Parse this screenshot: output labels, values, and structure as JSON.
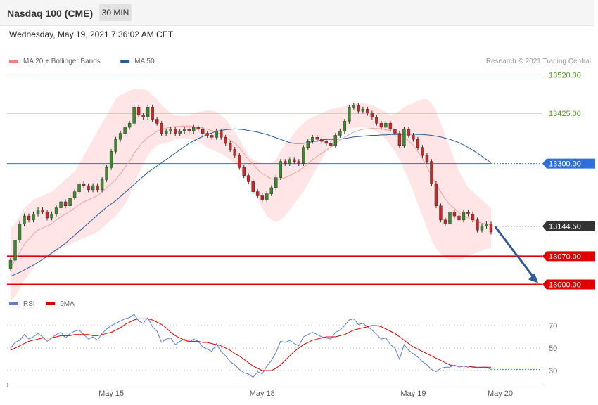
{
  "header": {
    "title": "Nasdaq 100 (CME)",
    "timeframe": "30 MIN"
  },
  "datetime": "Wednesday, May 19, 2021 7:36:02 AM CET",
  "copyright": "Research © 2021 Trading Central",
  "chart_data": [
    {
      "type": "candlestick",
      "legend": [
        {
          "name": "MA 20 + Bollinger Bands",
          "color": "#f08080"
        },
        {
          "name": "MA 50",
          "color": "#2a5a9a"
        }
      ],
      "ylim": [
        12960,
        13550
      ],
      "levels": [
        {
          "value": 13520,
          "label": "13520.00",
          "color": "#8fc07a",
          "text_color": "#5a9a28",
          "style": "line"
        },
        {
          "value": 13425,
          "label": "13425.00",
          "color": "#8fc07a",
          "text_color": "#5a9a28",
          "style": "line"
        },
        {
          "value": 13300,
          "label": "13300.00",
          "color": "#2f6fd6",
          "text_color": "#ffffff",
          "style": "badge"
        },
        {
          "value": 13144.5,
          "label": "13144.50",
          "color": "#333333",
          "text_color": "#ffffff",
          "style": "price"
        },
        {
          "value": 13070,
          "label": "13070.00",
          "color": "#e00000",
          "text_color": "#ffffff",
          "style": "badge"
        },
        {
          "value": 13000,
          "label": "13000.00",
          "color": "#e00000",
          "text_color": "#ffffff",
          "style": "badge"
        }
      ],
      "arrow": {
        "from": 13143,
        "to": 13000,
        "color": "#2e5a96"
      },
      "x_labels": [
        "May 15",
        "May 18",
        "May 19",
        "May 20"
      ],
      "x_label_index": [
        22,
        55,
        88,
        107
      ],
      "close": [
        13060,
        13110,
        13150,
        13170,
        13160,
        13175,
        13185,
        13180,
        13165,
        13175,
        13190,
        13205,
        13195,
        13215,
        13230,
        13250,
        13245,
        13235,
        13245,
        13235,
        13260,
        13290,
        13330,
        13360,
        13375,
        13390,
        13400,
        13440,
        13420,
        13415,
        13440,
        13410,
        13400,
        13375,
        13380,
        13385,
        13375,
        13380,
        13385,
        13380,
        13390,
        13385,
        13375,
        13370,
        13365,
        13380,
        13365,
        13350,
        13335,
        13320,
        13290,
        13270,
        13255,
        13230,
        13220,
        13210,
        13225,
        13240,
        13265,
        13305,
        13300,
        13310,
        13305,
        13300,
        13340,
        13355,
        13365,
        13360,
        13355,
        13350,
        13345,
        13370,
        13380,
        13405,
        13440,
        13445,
        13430,
        13435,
        13425,
        13415,
        13400,
        13390,
        13400,
        13385,
        13375,
        13345,
        13385,
        13370,
        13360,
        13340,
        13320,
        13305,
        13250,
        13195,
        13160,
        13150,
        13180,
        13170,
        13160,
        13180,
        13175,
        13160,
        13135,
        13145,
        13150,
        13130
      ],
      "ma20": [
        13040,
        13060,
        13080,
        13100,
        13112,
        13125,
        13135,
        13140,
        13145,
        13150,
        13160,
        13168,
        13175,
        13182,
        13190,
        13198,
        13205,
        13210,
        13215,
        13220,
        13230,
        13240,
        13250,
        13260,
        13275,
        13290,
        13305,
        13325,
        13340,
        13355,
        13365,
        13372,
        13380,
        13385,
        13388,
        13390,
        13392,
        13392,
        13393,
        13393,
        13392,
        13390,
        13388,
        13385,
        13382,
        13378,
        13372,
        13365,
        13358,
        13350,
        13340,
        13325,
        13310,
        13298,
        13285,
        13275,
        13268,
        13262,
        13260,
        13262,
        13265,
        13270,
        13276,
        13282,
        13290,
        13300,
        13310,
        13318,
        13326,
        13333,
        13340,
        13350,
        13358,
        13365,
        13372,
        13378,
        13382,
        13385,
        13386,
        13387,
        13387,
        13386,
        13384,
        13382,
        13378,
        13372,
        13365,
        13356,
        13345,
        13330,
        13312,
        13292,
        13270,
        13248,
        13230,
        13212,
        13198,
        13188,
        13178,
        13170,
        13165,
        13160,
        13155,
        13152,
        13150,
        13148
      ],
      "bb_upper": [
        13140,
        13150,
        13170,
        13190,
        13200,
        13210,
        13215,
        13220,
        13225,
        13230,
        13240,
        13250,
        13260,
        13270,
        13280,
        13300,
        13320,
        13340,
        13360,
        13380,
        13400,
        13420,
        13440,
        13460,
        13470,
        13475,
        13480,
        13485,
        13485,
        13485,
        13480,
        13470,
        13460,
        13445,
        13435,
        13425,
        13420,
        13418,
        13418,
        13420,
        13425,
        13428,
        13430,
        13432,
        13432,
        13428,
        13420,
        13410,
        13395,
        13380,
        13360,
        13340,
        13320,
        13310,
        13305,
        13300,
        13300,
        13300,
        13310,
        13330,
        13350,
        13360,
        13375,
        13390,
        13400,
        13410,
        13415,
        13420,
        13425,
        13430,
        13435,
        13438,
        13440,
        13442,
        13445,
        13448,
        13450,
        13450,
        13448,
        13445,
        13440,
        13435,
        13428,
        13420,
        13425,
        13430,
        13440,
        13445,
        13450,
        13455,
        13460,
        13460,
        13450,
        13430,
        13400,
        13370,
        13340,
        13310,
        13280,
        13260,
        13240,
        13230,
        13220,
        13210,
        13200,
        13190
      ],
      "bb_lower": [
        12960,
        12970,
        12990,
        13010,
        13025,
        13040,
        13055,
        13060,
        13065,
        13070,
        13080,
        13090,
        13095,
        13100,
        13105,
        13110,
        13115,
        13120,
        13125,
        13130,
        13140,
        13150,
        13160,
        13170,
        13185,
        13200,
        13220,
        13250,
        13275,
        13300,
        13320,
        13335,
        13345,
        13350,
        13352,
        13355,
        13360,
        13362,
        13362,
        13362,
        13360,
        13355,
        13348,
        13340,
        13335,
        13330,
        13325,
        13318,
        13310,
        13300,
        13290,
        13270,
        13250,
        13230,
        13210,
        13190,
        13170,
        13160,
        13155,
        13160,
        13170,
        13185,
        13200,
        13215,
        13230,
        13250,
        13270,
        13290,
        13310,
        13330,
        13345,
        13360,
        13370,
        13380,
        13385,
        13388,
        13390,
        13390,
        13388,
        13385,
        13380,
        13372,
        13360,
        13345,
        13330,
        13310,
        13285,
        13260,
        13230,
        13200,
        13170,
        13140,
        13110,
        13090,
        13075,
        13065,
        13060,
        13060,
        13060,
        13065,
        13070,
        13075,
        13080,
        13085,
        13088,
        13090
      ],
      "ma50": [
        13020,
        13025,
        13030,
        13036,
        13042,
        13048,
        13055,
        13062,
        13070,
        13078,
        13086,
        13094,
        13102,
        13112,
        13122,
        13132,
        13142,
        13152,
        13162,
        13172,
        13182,
        13192,
        13200,
        13208,
        13218,
        13228,
        13238,
        13248,
        13258,
        13268,
        13278,
        13286,
        13294,
        13302,
        13310,
        13318,
        13326,
        13334,
        13342,
        13350,
        13356,
        13362,
        13367,
        13372,
        13376,
        13380,
        13382,
        13384,
        13385,
        13386,
        13385,
        13384,
        13382,
        13380,
        13378,
        13375,
        13372,
        13368,
        13364,
        13360,
        13356,
        13352,
        13350,
        13350,
        13350,
        13352,
        13354,
        13356,
        13358,
        13360,
        13360,
        13360,
        13361,
        13362,
        13364,
        13366,
        13367,
        13368,
        13369,
        13370,
        13370,
        13371,
        13371,
        13372,
        13372,
        13372,
        13373,
        13373,
        13373,
        13372,
        13372,
        13371,
        13370,
        13368,
        13366,
        13363,
        13360,
        13356,
        13352,
        13346,
        13340,
        13333,
        13326,
        13318,
        13310,
        13302
      ]
    },
    {
      "type": "line",
      "legend": [
        {
          "name": "RSI",
          "color": "#5b7fd6"
        },
        {
          "name": "9MA",
          "color": "#e00000"
        }
      ],
      "ylim": [
        20,
        80
      ],
      "levels": [
        {
          "value": 70,
          "label": "70"
        },
        {
          "value": 50,
          "label": "50"
        },
        {
          "value": 30,
          "label": "30"
        }
      ],
      "rsi": [
        50,
        55,
        57,
        62,
        58,
        60,
        63,
        60,
        56,
        59,
        62,
        64,
        59,
        63,
        65,
        66,
        62,
        58,
        60,
        57,
        63,
        67,
        70,
        72,
        74,
        76,
        77,
        80,
        74,
        72,
        77,
        69,
        65,
        55,
        58,
        59,
        53,
        56,
        58,
        55,
        58,
        56,
        51,
        49,
        47,
        54,
        47,
        43,
        38,
        35,
        31,
        28,
        27,
        24,
        29,
        27,
        34,
        39,
        46,
        56,
        55,
        57,
        54,
        52,
        60,
        62,
        64,
        62,
        60,
        59,
        58,
        64,
        66,
        70,
        75,
        76,
        71,
        72,
        69,
        66,
        62,
        58,
        59,
        53,
        50,
        40,
        53,
        48,
        45,
        42,
        38,
        35,
        31,
        29,
        32,
        33,
        33,
        35,
        33,
        34,
        33,
        34,
        32,
        33,
        33,
        31
      ],
      "ma9": [
        48,
        50,
        52,
        54,
        56,
        57,
        58,
        59,
        59,
        59,
        60,
        61,
        61,
        61,
        62,
        62,
        62,
        62,
        61,
        61,
        62,
        63,
        64,
        66,
        68,
        71,
        73,
        75,
        76,
        76,
        76,
        75,
        73,
        71,
        68,
        64,
        61,
        59,
        57,
        56,
        56,
        56,
        55,
        55,
        54,
        53,
        52,
        50,
        48,
        45,
        43,
        40,
        37,
        34,
        32,
        30,
        30,
        30,
        32,
        35,
        39,
        43,
        47,
        50,
        53,
        55,
        57,
        58,
        59,
        60,
        60,
        60,
        61,
        62,
        64,
        66,
        67,
        68,
        69,
        70,
        70,
        69,
        67,
        65,
        63,
        60,
        57,
        54,
        51,
        49,
        47,
        45,
        43,
        41,
        39,
        37,
        35,
        34,
        34,
        34,
        34,
        33,
        33,
        33,
        33,
        33
      ]
    }
  ]
}
